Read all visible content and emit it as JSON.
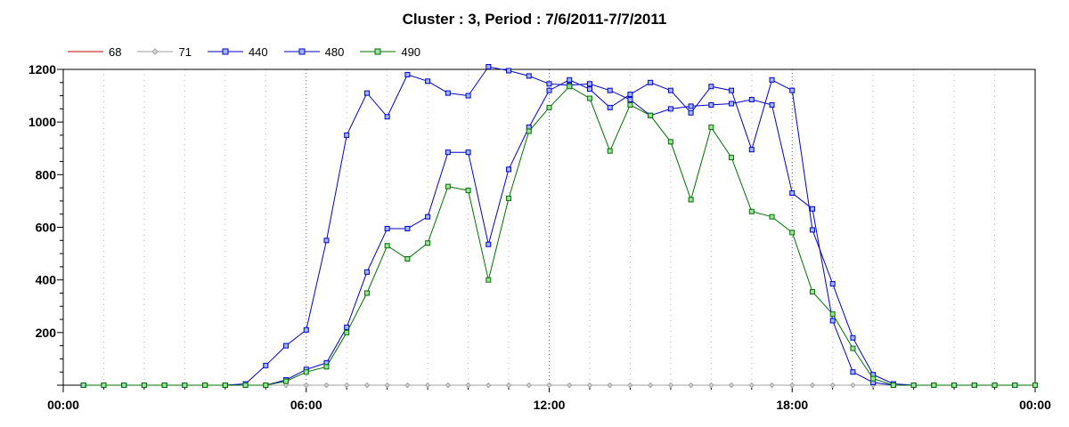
{
  "chart_data": {
    "type": "line",
    "title": "Cluster : 3, Period : 7/6/2011-7/7/2011",
    "xlabel": "",
    "ylabel": "",
    "x_tick_labels": [
      "00:00",
      "06:00",
      "12:00",
      "18:00",
      "00:00"
    ],
    "y_ticks": [
      200,
      400,
      600,
      800,
      1000,
      1200
    ],
    "xlim_hours": [
      0,
      24
    ],
    "ylim": [
      0,
      1200
    ],
    "grid": true,
    "legend": "top-left",
    "x_hours": [
      0.5,
      1,
      1.5,
      2,
      2.5,
      3,
      3.5,
      4,
      4.5,
      5,
      5.5,
      6,
      6.5,
      7,
      7.5,
      8,
      8.5,
      9,
      9.5,
      10,
      10.5,
      11,
      11.5,
      12,
      12.5,
      13,
      13.5,
      14,
      14.5,
      15,
      15.5,
      16,
      16.5,
      17,
      17.5,
      18,
      18.5,
      19,
      19.5,
      20,
      20.5,
      21,
      21.5,
      22,
      22.5,
      23,
      23.5,
      24
    ],
    "series": [
      {
        "name": "68",
        "color": "#c00000",
        "marker": "none",
        "values": [
          0,
          0,
          0,
          0,
          0,
          0,
          0,
          0,
          0,
          0,
          0,
          0,
          0,
          0,
          0,
          0,
          0,
          0,
          0,
          0,
          0,
          0,
          0,
          0,
          0,
          0,
          0,
          0,
          0,
          0,
          0,
          0,
          0,
          0,
          0,
          0,
          0,
          0,
          0,
          0,
          0,
          0,
          0,
          0,
          0,
          0,
          0,
          0
        ]
      },
      {
        "name": "71",
        "color": "#a0a0a0",
        "marker": "diamond",
        "values": [
          0,
          0,
          0,
          0,
          0,
          0,
          0,
          0,
          0,
          0,
          0,
          0,
          0,
          0,
          0,
          0,
          0,
          0,
          0,
          0,
          0,
          0,
          0,
          0,
          0,
          0,
          0,
          0,
          0,
          0,
          0,
          0,
          0,
          0,
          0,
          0,
          0,
          0,
          0,
          0,
          0,
          0,
          0,
          0,
          0,
          0,
          0,
          0
        ]
      },
      {
        "name": "440",
        "color": "#0000cc",
        "marker": "square",
        "values": [
          0,
          0,
          0,
          0,
          0,
          0,
          0,
          0,
          5,
          75,
          150,
          210,
          550,
          950,
          1110,
          1020,
          1180,
          1155,
          1110,
          1100,
          1210,
          1195,
          1175,
          1145,
          1140,
          1145,
          1120,
          1085,
          1025,
          1050,
          1060,
          1065,
          1070,
          1085,
          1065,
          730,
          670,
          245,
          50,
          10,
          0,
          0,
          0,
          0,
          0,
          0,
          0,
          0
        ]
      },
      {
        "name": "480",
        "color": "#0000cc",
        "marker": "square",
        "values": [
          0,
          0,
          0,
          0,
          0,
          0,
          0,
          0,
          0,
          0,
          20,
          60,
          85,
          220,
          430,
          595,
          595,
          640,
          885,
          885,
          535,
          820,
          980,
          1120,
          1160,
          1125,
          1055,
          1105,
          1150,
          1120,
          1035,
          1135,
          1120,
          895,
          1160,
          1120,
          590,
          385,
          180,
          40,
          5,
          0,
          0,
          0,
          0,
          0,
          0,
          0
        ]
      },
      {
        "name": "490",
        "color": "#007000",
        "marker": "square",
        "values": [
          0,
          0,
          0,
          0,
          0,
          0,
          0,
          0,
          0,
          0,
          15,
          50,
          70,
          200,
          350,
          530,
          480,
          540,
          755,
          740,
          400,
          710,
          965,
          1055,
          1135,
          1090,
          890,
          1065,
          1025,
          925,
          705,
          980,
          865,
          660,
          640,
          580,
          355,
          270,
          140,
          25,
          0,
          0,
          0,
          0,
          0,
          0,
          0,
          0
        ]
      }
    ]
  }
}
